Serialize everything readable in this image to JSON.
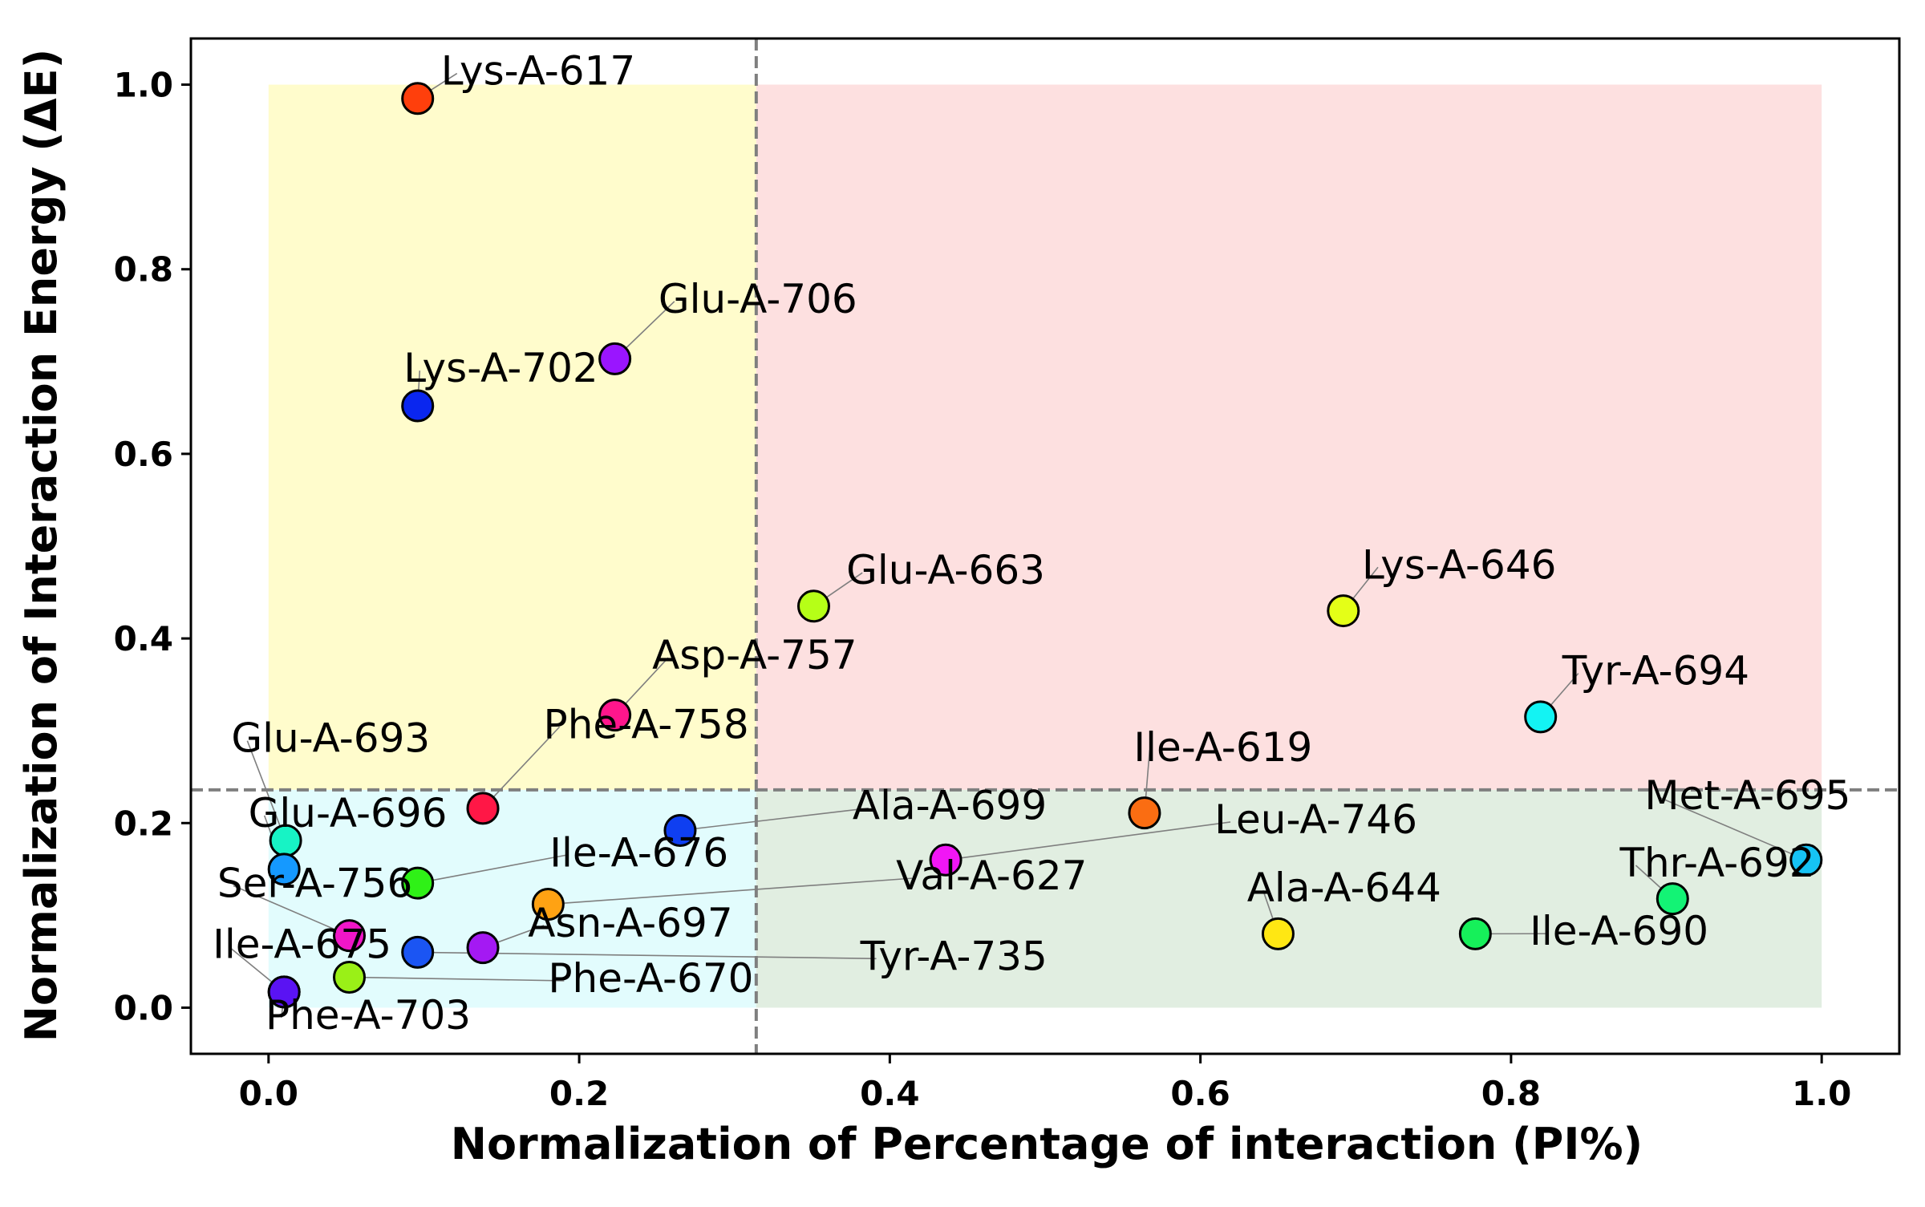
{
  "chart_data": {
    "type": "scatter",
    "xlabel": "Normalization of Percentage of interaction (PI%)",
    "ylabel": "Normalization of Interaction Energy (ΔE)",
    "xlim": [
      -0.05,
      1.05
    ],
    "ylim": [
      -0.05,
      1.05
    ],
    "xticks": [
      0.0,
      0.2,
      0.4,
      0.6,
      0.8,
      1.0
    ],
    "xtick_labels": [
      "0.0",
      "0.2",
      "0.4",
      "0.6",
      "0.8",
      "1.0"
    ],
    "yticks": [
      0.0,
      0.2,
      0.4,
      0.6,
      0.8,
      1.0
    ],
    "ytick_labels": [
      "0.0",
      "0.2",
      "0.4",
      "0.6",
      "0.8",
      "1.0"
    ],
    "grid": false,
    "legend": "none",
    "threshold_x": 0.314,
    "threshold_y": 0.236,
    "quadrants": [
      {
        "name": "top-left",
        "x": [
          0.0,
          0.314
        ],
        "y": [
          0.236,
          1.0
        ],
        "color": "#fffccc"
      },
      {
        "name": "top-right",
        "x": [
          0.314,
          1.0
        ],
        "y": [
          0.236,
          1.0
        ],
        "color": "#fde0e0"
      },
      {
        "name": "bottom-left",
        "x": [
          0.0,
          0.314
        ],
        "y": [
          0.0,
          0.236
        ],
        "color": "#e2fcfd"
      },
      {
        "name": "bottom-right",
        "x": [
          0.314,
          1.0
        ],
        "y": [
          0.0,
          0.236
        ],
        "color": "#e1eee1"
      }
    ],
    "points": [
      {
        "label": "Lys-A-617",
        "x": 0.096,
        "y": 0.985,
        "color": "#ff3f0c",
        "lx": 0.111,
        "ly": 1.0
      },
      {
        "label": "Glu-A-706",
        "x": 0.223,
        "y": 0.703,
        "color": "#9a15ff",
        "lx": 0.251,
        "ly": 0.753
      },
      {
        "label": "Lys-A-702",
        "x": 0.096,
        "y": 0.652,
        "color": "#0a26ef",
        "lx": 0.087,
        "ly": 0.678
      },
      {
        "label": "Glu-A-663",
        "x": 0.351,
        "y": 0.435,
        "color": "#b6ff17",
        "lx": 0.372,
        "ly": 0.459
      },
      {
        "label": "Lys-A-646",
        "x": 0.692,
        "y": 0.43,
        "color": "#e4ff17",
        "lx": 0.704,
        "ly": 0.465
      },
      {
        "label": "Asp-A-757",
        "x": 0.223,
        "y": 0.317,
        "color": "#ff168c",
        "lx": 0.247,
        "ly": 0.367
      },
      {
        "label": "Tyr-A-694",
        "x": 0.819,
        "y": 0.315,
        "color": "#13f3f3",
        "lx": 0.833,
        "ly": 0.35
      },
      {
        "label": "Phe-A-758",
        "x": 0.138,
        "y": 0.216,
        "color": "#ff1746",
        "lx": 0.177,
        "ly": 0.292
      },
      {
        "label": "Ile-A-619",
        "x": 0.564,
        "y": 0.211,
        "color": "#fa6d12",
        "lx": 0.557,
        "ly": 0.267
      },
      {
        "label": "Glu-A-693",
        "x": 0.011,
        "y": 0.181,
        "color": "#17f3c5",
        "lx": -0.024,
        "ly": 0.277
      },
      {
        "label": "Glu-A-696",
        "x": 0.01,
        "y": 0.15,
        "color": "#1599ff",
        "lx": -0.013,
        "ly": 0.196
      },
      {
        "label": "Ala-A-699",
        "x": 0.265,
        "y": 0.192,
        "color": "#0f3ff1",
        "lx": 0.376,
        "ly": 0.204
      },
      {
        "label": "Met-A-695",
        "x": 0.99,
        "y": 0.16,
        "color": "#16c3f5",
        "lx": 0.886,
        "ly": 0.215
      },
      {
        "label": "Leu-A-746",
        "x": 0.436,
        "y": 0.16,
        "color": "#f116f5",
        "lx": 0.609,
        "ly": 0.189
      },
      {
        "label": "Ile-A-676",
        "x": 0.096,
        "y": 0.135,
        "color": "#2ff117",
        "lx": 0.181,
        "ly": 0.153
      },
      {
        "label": "Thr-A-692",
        "x": 0.904,
        "y": 0.118,
        "color": "#13f375",
        "lx": 0.87,
        "ly": 0.142
      },
      {
        "label": "Val-A-627",
        "x": 0.18,
        "y": 0.112,
        "color": "#ffa213",
        "lx": 0.404,
        "ly": 0.128
      },
      {
        "label": "Ser-A-756",
        "x": 0.052,
        "y": 0.078,
        "color": "#f116c8",
        "lx": -0.033,
        "ly": 0.12
      },
      {
        "label": "Ala-A-644",
        "x": 0.65,
        "y": 0.08,
        "color": "#ffe713",
        "lx": 0.63,
        "ly": 0.115
      },
      {
        "label": "Ile-A-690",
        "x": 0.777,
        "y": 0.08,
        "color": "#16f05a",
        "lx": 0.812,
        "ly": 0.068
      },
      {
        "label": "Asn-A-697",
        "x": 0.138,
        "y": 0.065,
        "color": "#a419f3",
        "lx": 0.167,
        "ly": 0.077
      },
      {
        "label": "Tyr-A-735",
        "x": 0.096,
        "y": 0.06,
        "color": "#1b55f3",
        "lx": 0.381,
        "ly": 0.041
      },
      {
        "label": "Ile-A-675",
        "x": 0.01,
        "y": 0.017,
        "color": "#5a13f3",
        "lx": -0.036,
        "ly": 0.054
      },
      {
        "label": "Phe-A-670",
        "x": 0.052,
        "y": 0.033,
        "color": "#9af017",
        "lx": 0.18,
        "ly": 0.017
      },
      {
        "label": "Phe-A-703",
        "x": 0.01,
        "y": 0.017,
        "color": "#5a13f3",
        "lx": -0.002,
        "ly": -0.023
      }
    ]
  }
}
